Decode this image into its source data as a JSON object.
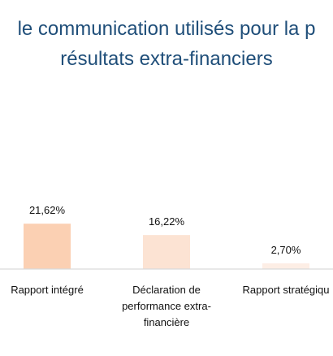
{
  "chart_data": {
    "type": "bar",
    "title_lines": [
      "le communication utilisés pour la p",
      "résultats extra-financiers"
    ],
    "categories": [
      [
        "Rapport intégré"
      ],
      [
        "Déclaration de",
        "performance extra-",
        "financière"
      ],
      [
        "Rapport stratégiqu"
      ]
    ],
    "values": [
      21.62,
      16.22,
      2.7
    ],
    "value_labels": [
      "21,62%",
      "16,22%",
      "2,70%"
    ],
    "colors": [
      "#fbd0b3",
      "#fce3d3",
      "#fdeee5"
    ],
    "ylim": [
      0,
      25
    ]
  }
}
